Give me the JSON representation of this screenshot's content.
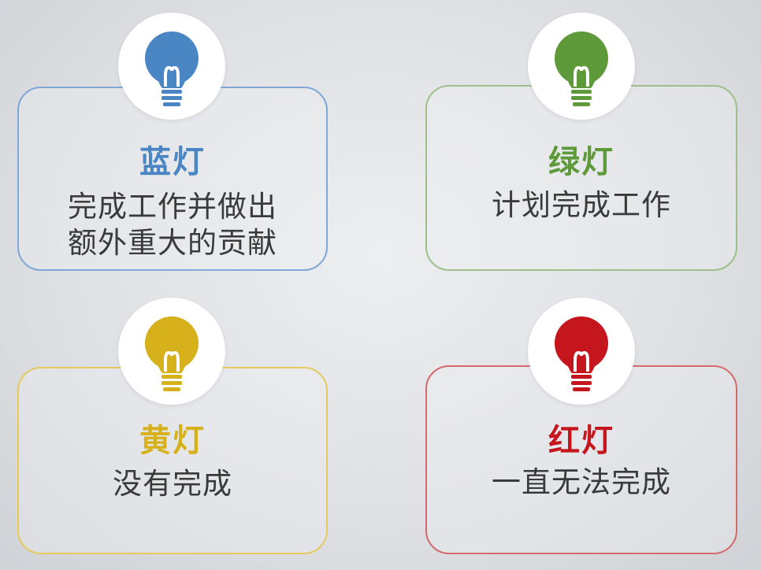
{
  "lights": [
    {
      "title": "蓝灯",
      "desc_lines": [
        "完成工作并做出",
        "额外重大的贡献"
      ],
      "color": "#4a86c4",
      "border": "#7ea6d6",
      "icon": "lightbulb-icon"
    },
    {
      "title": "绿灯",
      "desc_lines": [
        "计划完成工作"
      ],
      "color": "#5f9a3a",
      "border": "#9fbf8a",
      "icon": "lightbulb-icon"
    },
    {
      "title": "黄灯",
      "desc_lines": [
        "没有完成"
      ],
      "color": "#d6b11c",
      "border": "#e6c960",
      "icon": "lightbulb-icon"
    },
    {
      "title": "红灯",
      "desc_lines": [
        "一直无法完成"
      ],
      "color": "#c4161c",
      "border": "#d46a6e",
      "icon": "lightbulb-icon"
    }
  ]
}
